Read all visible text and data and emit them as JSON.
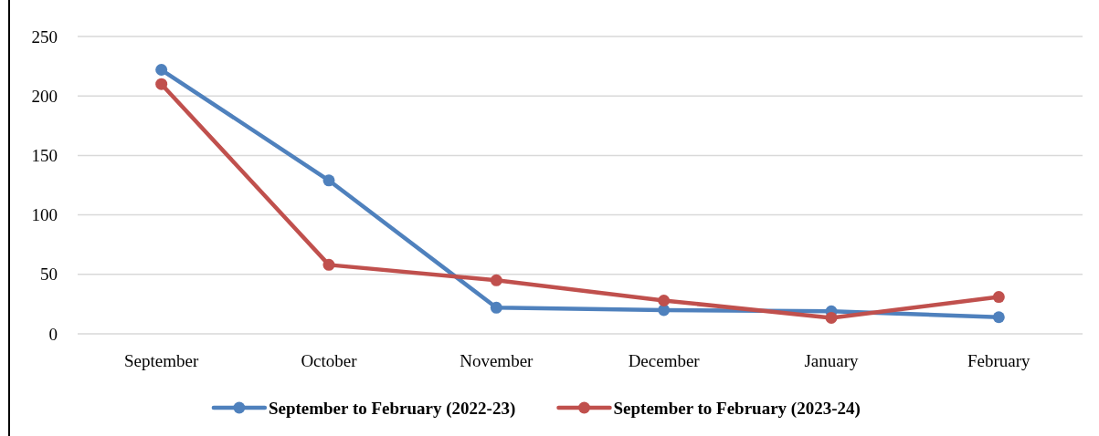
{
  "chart_data": {
    "type": "line",
    "categories": [
      "September",
      "October",
      "November",
      "December",
      "January",
      "February"
    ],
    "series": [
      {
        "name": "September to February (2022-23)",
        "color": "#4f81bd",
        "values": [
          222,
          129,
          22,
          20,
          19,
          14
        ]
      },
      {
        "name": "September to February (2023-24)",
        "color": "#c0504d",
        "values": [
          210,
          58,
          45,
          28,
          13.5,
          31
        ]
      }
    ],
    "ylim": [
      0,
      250
    ],
    "yticks": [
      0,
      50,
      100,
      150,
      200,
      250
    ],
    "grid": "y",
    "legend": "bottom",
    "marker": "circle",
    "line_style": "solid"
  }
}
